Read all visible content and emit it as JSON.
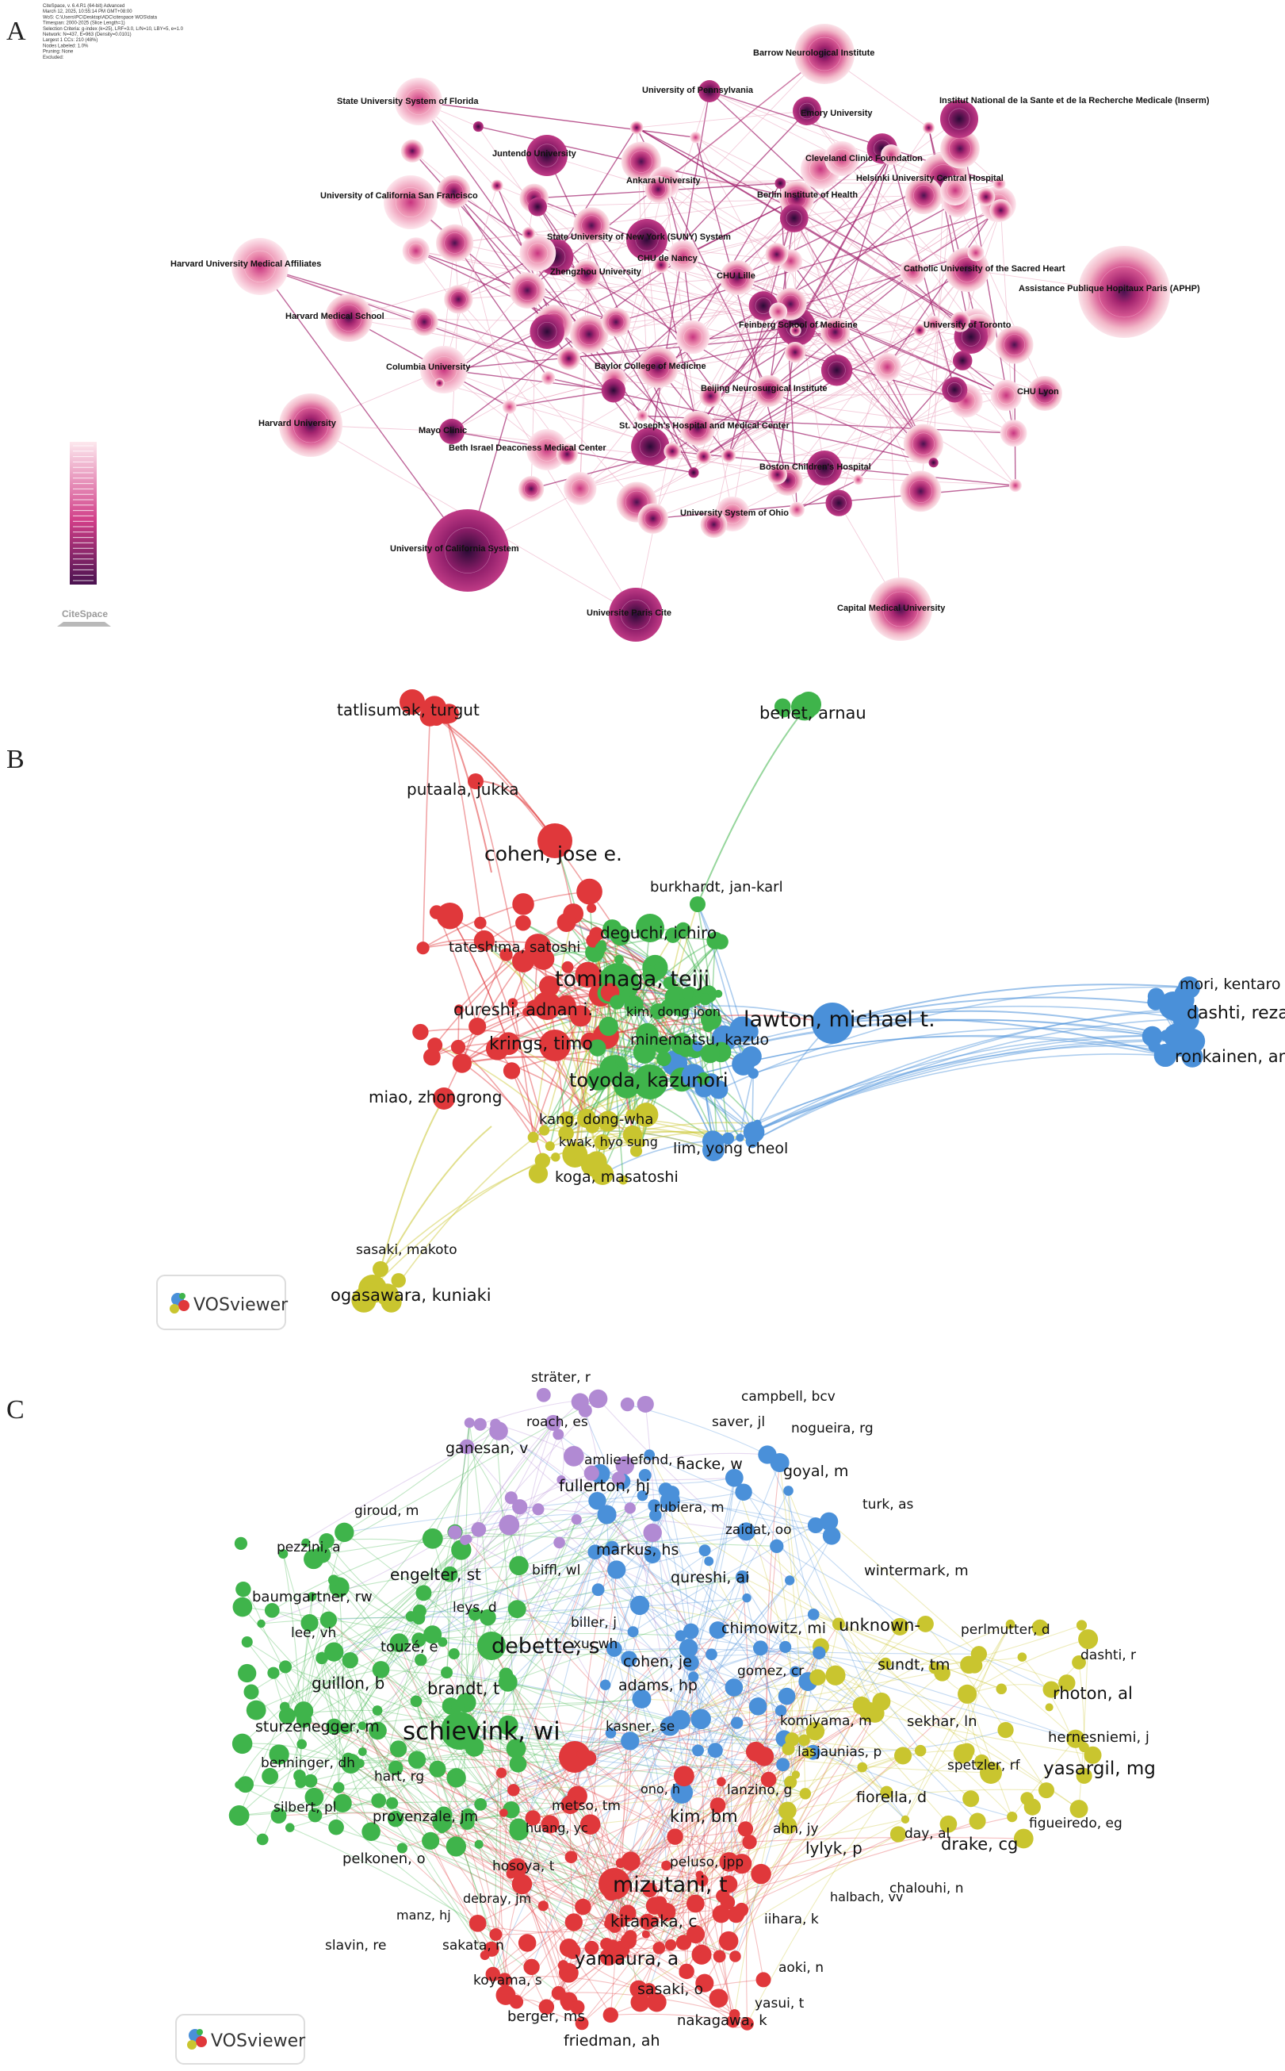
{
  "panels": {
    "a": {
      "letter": "A",
      "header_lines": [
        "CiteSpace, v. 6.4.R1 (64-bit) Advanced",
        "March 12, 2025, 10:55:14 PM GMT+08:00",
        "WoS: C:\\Users\\PC\\Desktop\\ADC\\citespace WOS\\data",
        "Timespan: 2000-2025 (Slice Length=1)",
        "Selection Criteria: g-index (k=25), LRF=3.0, L/N=10, LBY=5, e=1.0",
        "Network: N=437, E=963 (Density=0.0101)",
        "Largest 1 CCs: 210 (48%)",
        "Nodes Labeled: 1.0%",
        "Pruning: None",
        "Excluded:"
      ],
      "logo_text": "CiteSpace",
      "labels": [
        "Barrow Neurological Institute",
        "University of Pennsylvania",
        "Emory University",
        "Institut National de la Sante et de la Recherche Medicale (Inserm)",
        "State University System of Florida",
        "Juntendo University",
        "Cleveland Clinic Foundation",
        "Helsinki University Central Hospital",
        "Ankara University",
        "Berlin Institute of Health",
        "University of California San Francisco",
        "State University of New York (SUNY) System",
        "Harvard University Medical Affiliates",
        "CHU de Nancy",
        "Catholic University of the Sacred Heart",
        "Zhengzhou University",
        "CHU Lille",
        "Assistance Publique Hopitaux Paris (APHP)",
        "Harvard Medical School",
        "Feinberg School of Medicine",
        "University of Toronto",
        "Columbia University",
        "Baylor College of Medicine",
        "Beijing Neurosurgical Institute",
        "CHU Lyon",
        "Harvard University",
        "Mayo Clinic",
        "St. Joseph's Hospital and Medical Center",
        "Beth Israel Deaconess Medical Center",
        "Boston Children's Hospital",
        "University System of Ohio",
        "University of California System",
        "Universite Paris Cite",
        "Capital Medical University"
      ]
    },
    "b": {
      "letter": "B",
      "logo_text": "VOSviewer",
      "labels": [
        "tatlisumak, turgut",
        "benet, arnau",
        "putaala, jukka",
        "cohen, jose e.",
        "burkhardt, jan-karl",
        "deguchi, ichiro",
        "tateshima, satoshi",
        "tominaga, teiji",
        "mori, kentaro",
        "qureshi, adnan i.",
        "kim, dong joon",
        "lawton, michael t.",
        "dashti, reza",
        "krings, timo",
        "minematsu, kazuo",
        "ronkainen, antti",
        "toyoda, kazunori",
        "miao, zhongrong",
        "kang, dong-wha",
        "kwak, hyo sung",
        "lim, yong cheol",
        "koga, masatoshi",
        "sasaki, makoto",
        "ogasawara, kuniaki"
      ]
    },
    "c": {
      "letter": "C",
      "logo_text": "VOSviewer",
      "labels": [
        "sträter, r",
        "campbell, bcv",
        "roach, es",
        "saver, jl",
        "nogueira, rg",
        "ganesan, v",
        "amlie-lefond, c",
        "hacke, w",
        "fullerton, hj",
        "rubiera, m",
        "goyal, m",
        "giroud, m",
        "turk, as",
        "zaidat, oo",
        "pezzini, a",
        "markus, hs",
        "biffl, wl",
        "wintermark, m",
        "engelter, st",
        "qureshi, ai",
        "baumgartner, rw",
        "leys, d",
        "biller, j",
        "chimowitz, mi",
        "unknown-",
        "lee, vh",
        "xu, wh",
        "perlmutter, d",
        "touzé, e",
        "debette, s",
        "cohen, je",
        "dashti, r",
        "guillon, b",
        "brandt, t",
        "adams, hp",
        "gomez, cr",
        "sundt, tm",
        "rhoton, al",
        "sturzenegger, m",
        "schievink, wi",
        "komiyama, m",
        "kasner, se",
        "sekhar, ln",
        "hernesniemi, j",
        "benninger, dh",
        "lasjaunias, p",
        "spetzler, rf",
        "yasargil, mg",
        "hart, rg",
        "ono, h",
        "lanzino, g",
        "fiorella, d",
        "silbert, pl",
        "metso, tm",
        "provenzale, jm",
        "kim, bm",
        "huang, yc",
        "ahn, jy",
        "day, al",
        "drake, cg",
        "figueiredo, eg",
        "pelkonen, o",
        "hosoya, t",
        "peluso, jpp",
        "lylyk, p",
        "mizutani, t",
        "chalouhi, n",
        "debray, jm",
        "halbach, vv",
        "manz, hj",
        "kitanaka, c",
        "iihara, k",
        "slavin, re",
        "sakata, n",
        "yamaura, a",
        "aoki, n",
        "koyama, s",
        "sasaki, o",
        "yasui, t",
        "berger, ms",
        "nakagawa, k",
        "friedman, ah"
      ]
    }
  },
  "colors": {
    "cs_dark": "#5b1a5e",
    "cs_mid": "#c8347f",
    "cs_light": "#f6c9d3",
    "red": "#e0383b",
    "green": "#3fb44b",
    "blue": "#4a90d9",
    "yellow": "#c9c52f",
    "purple": "#b18ad3"
  }
}
